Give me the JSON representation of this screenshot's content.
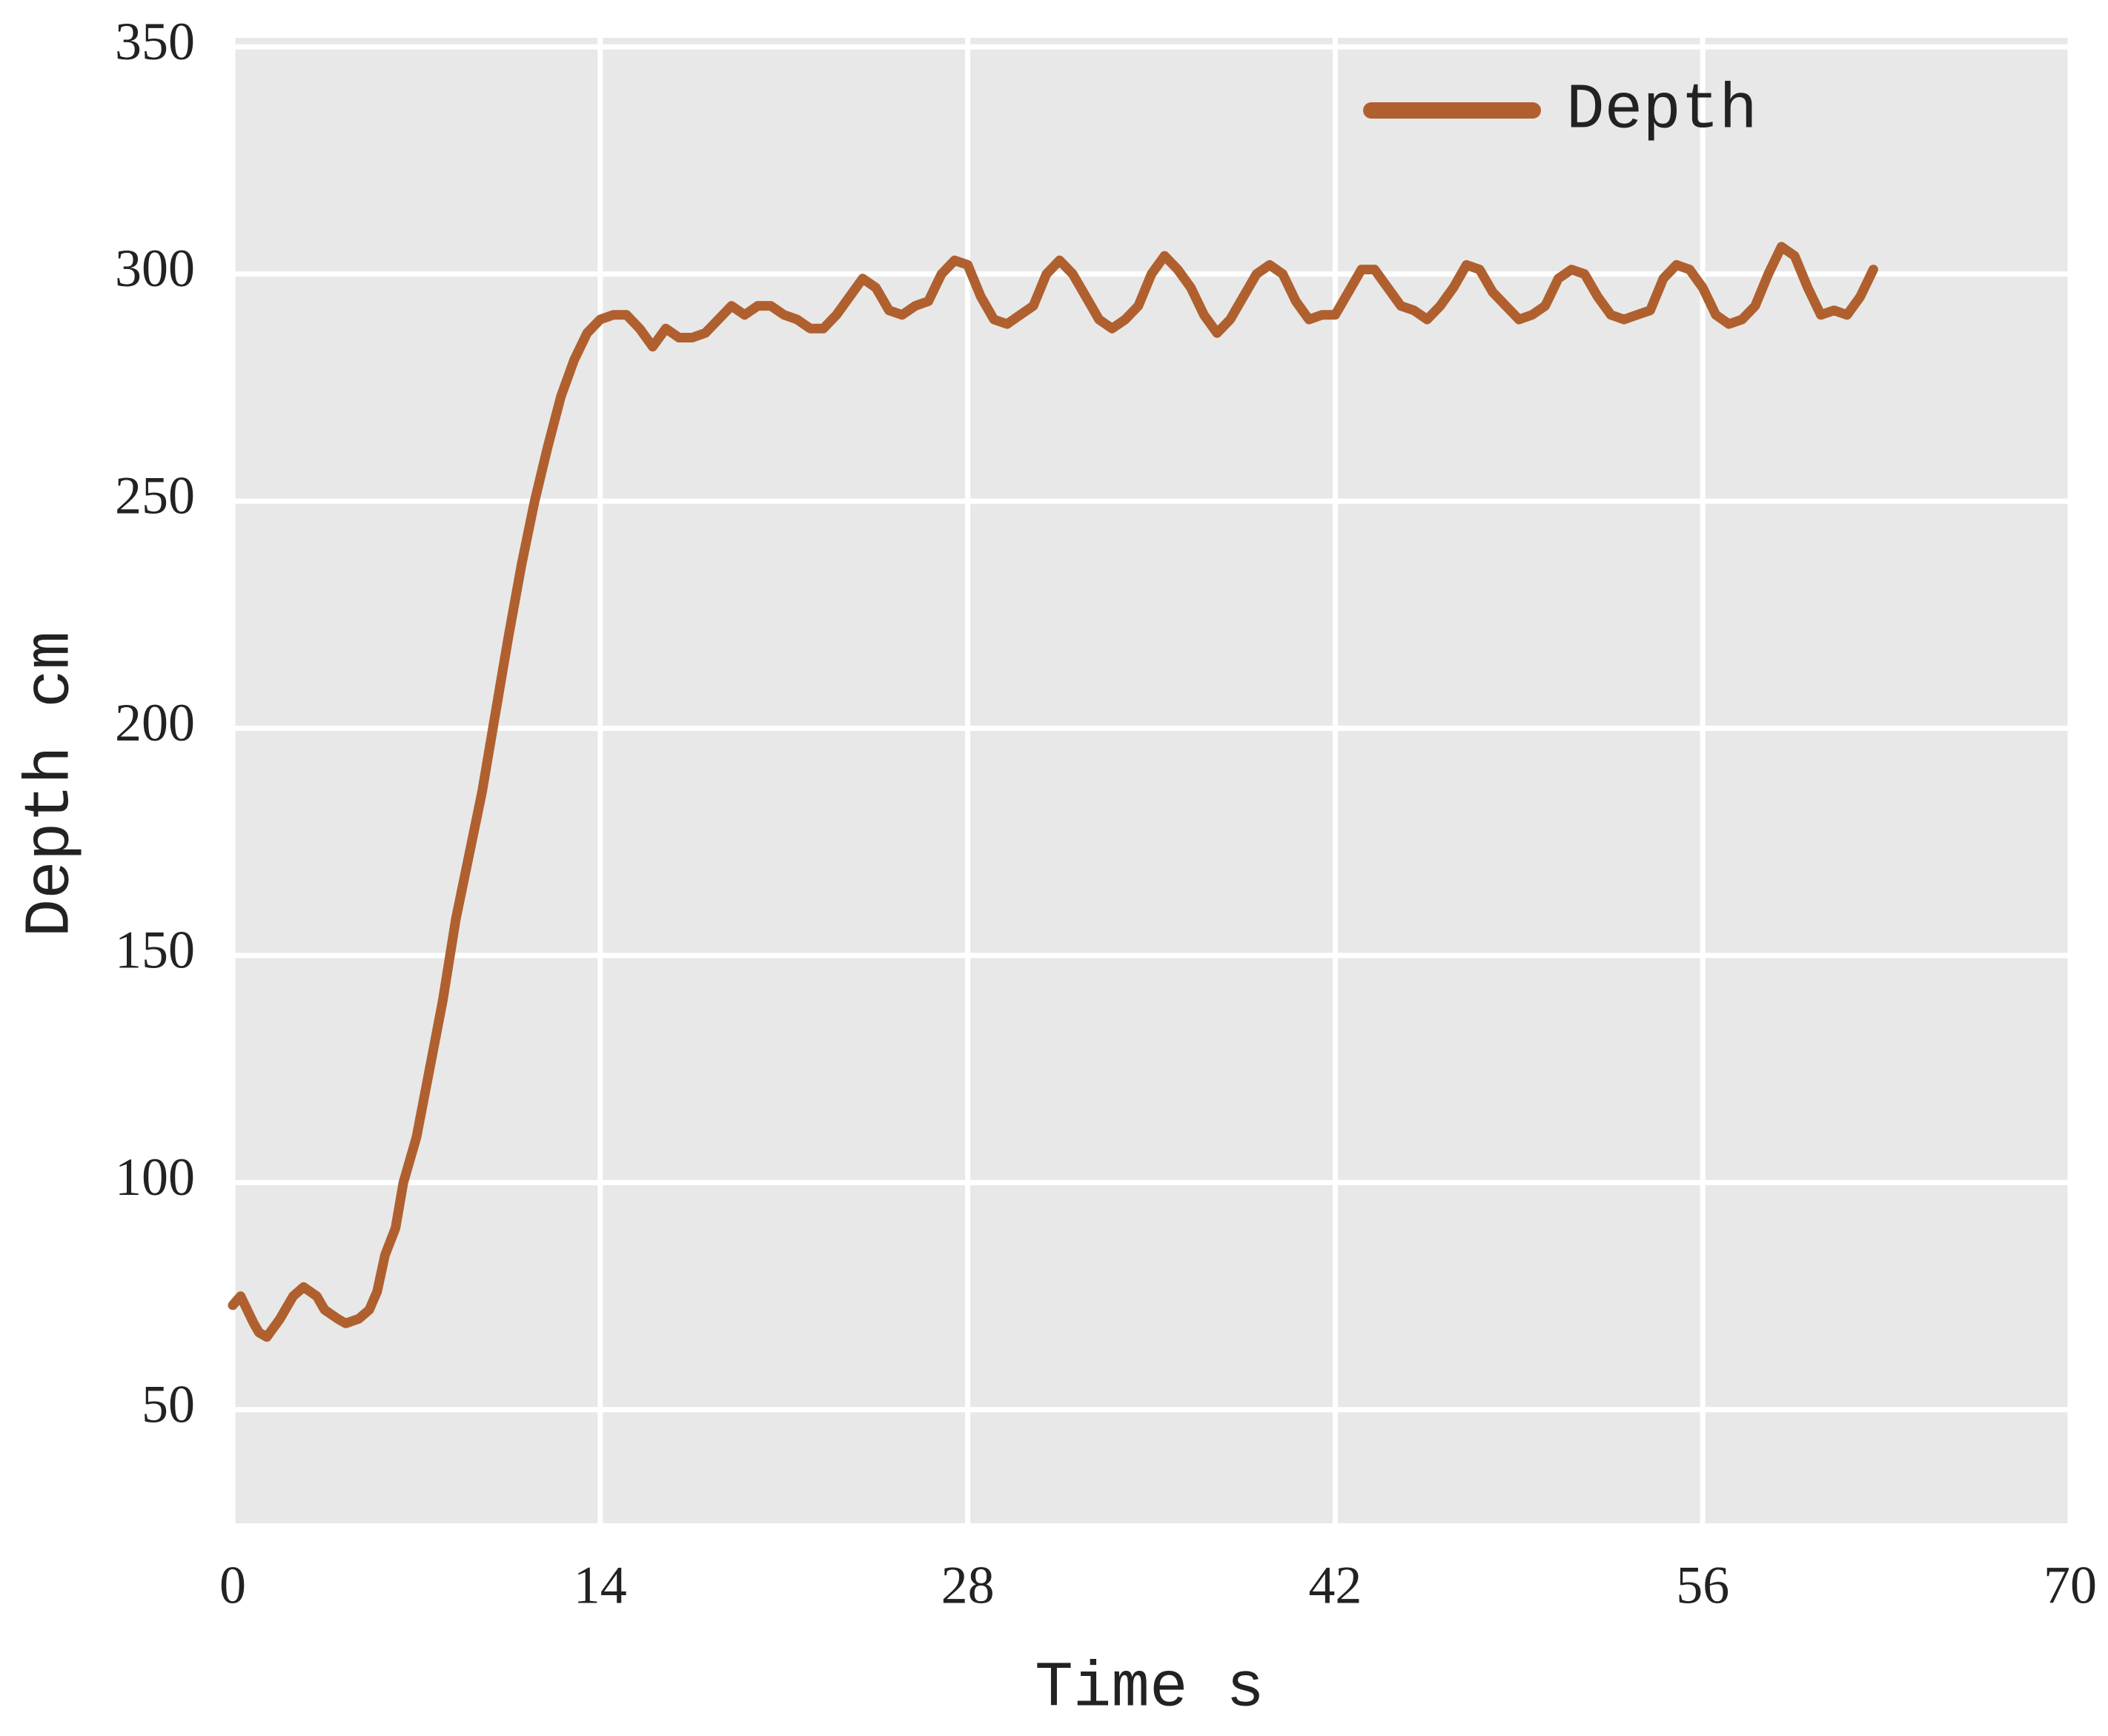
{
  "chart_data": {
    "type": "line",
    "xlabel": "Time s",
    "ylabel": "Depth cm",
    "xlim": [
      0,
      70
    ],
    "xticks": [
      0,
      14,
      28,
      42,
      56,
      70
    ],
    "ylim": [
      25,
      352
    ],
    "yticks": [
      50,
      100,
      150,
      200,
      250,
      300,
      350
    ],
    "grid": true,
    "legend": "upper right",
    "x": [
      0,
      0.3,
      0.8,
      1,
      1.3,
      1.8,
      2.3,
      2.7,
      3.2,
      3.5,
      4,
      4.3,
      4.8,
      5.2,
      5.5,
      5.8,
      6.2,
      6.5,
      7,
      7.5,
      8,
      8.5,
      9,
      9.5,
      10,
      10.5,
      11,
      11.5,
      12,
      12.5,
      13,
      13.5,
      14,
      14.5,
      15,
      15.5,
      16,
      16.5,
      17,
      17.5,
      18,
      18.5,
      19,
      19.5,
      20,
      20.5,
      21,
      21.5,
      22,
      22.5,
      23,
      23.5,
      24,
      24.5,
      25,
      25.5,
      26,
      26.5,
      27,
      27.5,
      28,
      28.5,
      29,
      29.5,
      30,
      30.5,
      31,
      31.5,
      32,
      32.5,
      33,
      33.5,
      34,
      34.5,
      35,
      35.5,
      36,
      36.5,
      37,
      37.5,
      38,
      38.5,
      39,
      39.5,
      40,
      40.5,
      41,
      41.5,
      42,
      42.5,
      43,
      43.5,
      44,
      44.5,
      45,
      45.5,
      46,
      46.5,
      47,
      47.5,
      48,
      48.5,
      49,
      49.5,
      50,
      50.5,
      51,
      51.5,
      52,
      52.5,
      53,
      53.5,
      54,
      54.5,
      55,
      55.5,
      56,
      56.5,
      57,
      57.5,
      58,
      58.5,
      59,
      59.5,
      60,
      60.5,
      61,
      61.5,
      62,
      62.5
    ],
    "series": [
      {
        "name": "Depth",
        "color": "#b0602e",
        "values": [
          73,
          75,
          69,
          67,
          66,
          70,
          75,
          77,
          75,
          72,
          70,
          69,
          70,
          72,
          76,
          84,
          90,
          100,
          110,
          125,
          140,
          158,
          172,
          186,
          203,
          220,
          236,
          250,
          262,
          273,
          281,
          287,
          290,
          291,
          291,
          288,
          284,
          288,
          286,
          286,
          287,
          290,
          293,
          291,
          293,
          293,
          291,
          290,
          288,
          288,
          291,
          295,
          299,
          297,
          292,
          291,
          293,
          294,
          300,
          303,
          302,
          295,
          290,
          289,
          291,
          293,
          300,
          303,
          300,
          295,
          290,
          288,
          290,
          293,
          300,
          304,
          301,
          297,
          291,
          287,
          290,
          295,
          300,
          302,
          300,
          294,
          290,
          291,
          291,
          296,
          301,
          301,
          297,
          293,
          292,
          290,
          293,
          297,
          302,
          301,
          296,
          293,
          290,
          291,
          293,
          299,
          301,
          300,
          295,
          291,
          290,
          291,
          292,
          299,
          302,
          301,
          297,
          291,
          289,
          290,
          293,
          300,
          306,
          304,
          297,
          291,
          292,
          291,
          295,
          301
        ]
      }
    ]
  }
}
